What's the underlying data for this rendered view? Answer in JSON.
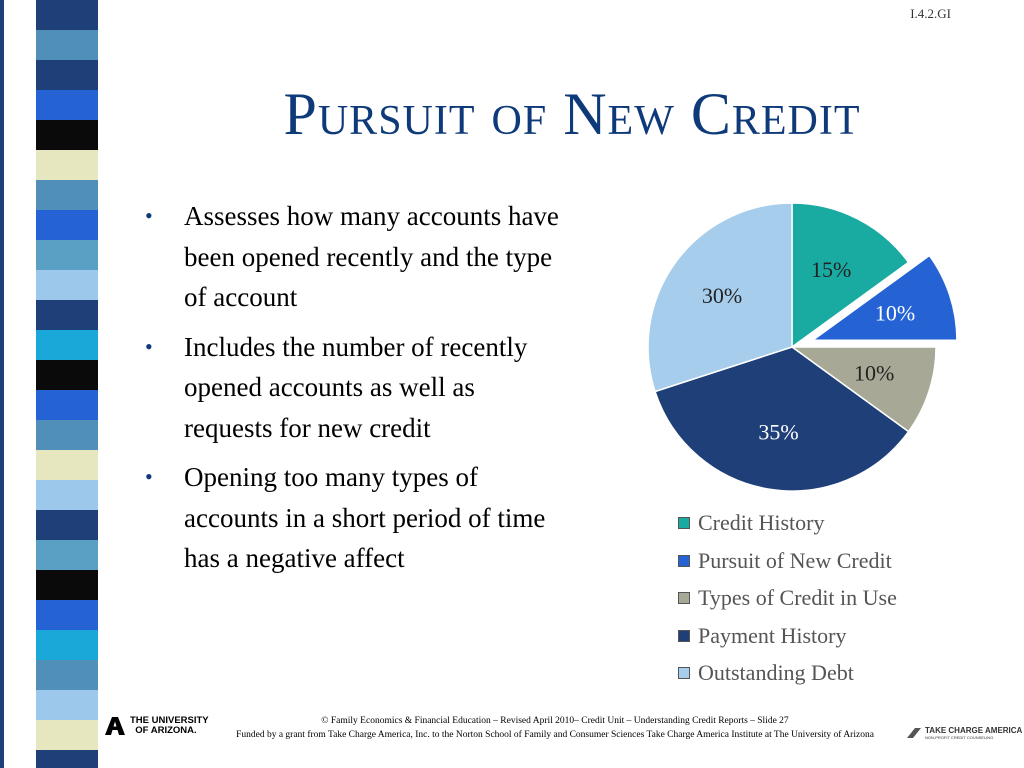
{
  "slide_code": "I.4.2.GI",
  "title": "Pursuit of New Credit",
  "bullets": [
    "Assesses how many accounts have been opened recently and the type of account",
    "Includes the number of recently opened accounts as well as requests for new credit",
    "Opening too many types of accounts in a short period of time has a negative affect"
  ],
  "chart_data": {
    "type": "pie",
    "categories": [
      "Credit History",
      "Pursuit of New Credit",
      "Types of Credit in Use",
      "Payment History",
      "Outstanding Debt"
    ],
    "values": [
      15,
      10,
      10,
      35,
      30
    ],
    "labels": [
      "15%",
      "10%",
      "10%",
      "35%",
      "30%"
    ],
    "colors": [
      "#19aaa2",
      "#2563d4",
      "#a8a896",
      "#1f3f78",
      "#a7cdec"
    ],
    "exploded": [
      false,
      true,
      false,
      false,
      false
    ],
    "legend_position": "bottom"
  },
  "footer": {
    "line1": "© Family Economics & Financial Education – Revised April 2010– Credit Unit – Understanding Credit Reports – Slide 27",
    "line2": "Funded by a grant from Take Charge America, Inc. to the Norton School of Family and Consumer Sciences Take Charge America Institute at The University of Arizona"
  },
  "logos": {
    "university": "The University of Arizona",
    "take_charge": "Take Charge America",
    "take_charge_sub": "non-profit credit counseling"
  },
  "strip_colors": [
    "#1f3f78",
    "#4f8fb8",
    "#2563d4",
    "#0a0a0a",
    "#e6e6bf",
    "#5aa0c4",
    "#9cc8ec",
    "#19a8d8"
  ]
}
